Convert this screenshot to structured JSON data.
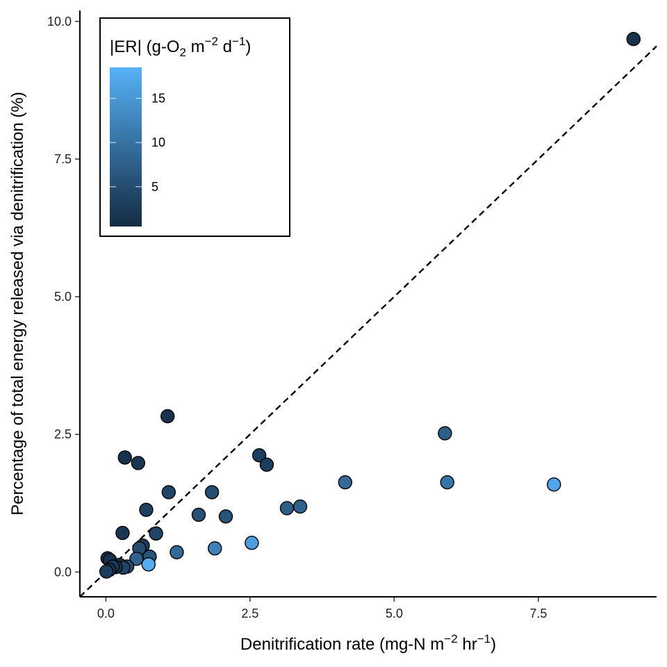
{
  "chart_data": {
    "type": "scatter",
    "title": "",
    "xlabel": {
      "main": "Denitrification rate (mg-N m",
      "sup1": "−2",
      "mid": " hr",
      "sup2": "−1",
      "end": ")"
    },
    "ylabel": "Percentage of total energy released via denitrification (%)",
    "xlim": [
      -0.45,
      9.55
    ],
    "ylim": [
      -0.45,
      10.2
    ],
    "xticks": [
      0.0,
      2.5,
      5.0,
      7.5
    ],
    "xtick_labels": [
      "0.0",
      "2.5",
      "5.0",
      "7.5"
    ],
    "yticks": [
      0.0,
      2.5,
      5.0,
      7.5,
      10.0
    ],
    "ytick_labels": [
      "0.0",
      "2.5",
      "5.0",
      "7.5",
      "10.0"
    ],
    "grid": false,
    "reference_line": {
      "type": "y=x",
      "style": "dashed",
      "color": "#000000"
    },
    "legend": {
      "title": {
        "pre": "|ER| (g-O",
        "sub": "2",
        "mid": " m",
        "sup1": "−2",
        "mid2": " d",
        "sup2": "−1",
        "end": ")"
      },
      "placement": "top-left",
      "range": [
        0.5,
        18.5
      ],
      "ticks": [
        5,
        10,
        15
      ],
      "tick_labels": [
        "5",
        "10",
        "15"
      ],
      "color_low": "#132b43",
      "color_high": "#56b1f7"
    },
    "points": [
      {
        "x": 9.15,
        "y": 9.68,
        "er": 1.5
      },
      {
        "x": 1.07,
        "y": 2.83,
        "er": 1.5
      },
      {
        "x": 0.33,
        "y": 2.08,
        "er": 1.5
      },
      {
        "x": 0.56,
        "y": 1.98,
        "er": 2.0
      },
      {
        "x": 2.66,
        "y": 2.12,
        "er": 3.0
      },
      {
        "x": 2.79,
        "y": 1.95,
        "er": 3.0
      },
      {
        "x": 5.88,
        "y": 2.52,
        "er": 7.5
      },
      {
        "x": 1.09,
        "y": 1.45,
        "er": 4.0
      },
      {
        "x": 1.84,
        "y": 1.45,
        "er": 5.0
      },
      {
        "x": 4.15,
        "y": 1.63,
        "er": 9.0
      },
      {
        "x": 5.92,
        "y": 1.63,
        "er": 10.5
      },
      {
        "x": 7.77,
        "y": 1.59,
        "er": 17.0
      },
      {
        "x": 0.7,
        "y": 1.13,
        "er": 3.5
      },
      {
        "x": 1.61,
        "y": 1.04,
        "er": 5.5
      },
      {
        "x": 2.08,
        "y": 1.01,
        "er": 6.0
      },
      {
        "x": 3.14,
        "y": 1.16,
        "er": 7.5
      },
      {
        "x": 3.37,
        "y": 1.19,
        "er": 8.0
      },
      {
        "x": 0.29,
        "y": 0.71,
        "er": 2.0
      },
      {
        "x": 0.87,
        "y": 0.7,
        "er": 4.0
      },
      {
        "x": 0.64,
        "y": 0.48,
        "er": 3.0
      },
      {
        "x": 0.58,
        "y": 0.43,
        "er": 5.0
      },
      {
        "x": 2.53,
        "y": 0.53,
        "er": 16.0
      },
      {
        "x": 1.89,
        "y": 0.43,
        "er": 12.0
      },
      {
        "x": 1.23,
        "y": 0.36,
        "er": 9.0
      },
      {
        "x": 0.76,
        "y": 0.28,
        "er": 6.0
      },
      {
        "x": 0.53,
        "y": 0.24,
        "er": 8.0
      },
      {
        "x": 0.03,
        "y": 0.25,
        "er": 1.5
      },
      {
        "x": 0.07,
        "y": 0.22,
        "er": 1.5
      },
      {
        "x": 0.24,
        "y": 0.13,
        "er": 3.0
      },
      {
        "x": 0.37,
        "y": 0.1,
        "er": 5.0
      },
      {
        "x": 0.3,
        "y": 0.08,
        "er": 4.0
      },
      {
        "x": 0.17,
        "y": 0.09,
        "er": 2.5
      },
      {
        "x": 0.12,
        "y": 0.1,
        "er": 2.5
      },
      {
        "x": 0.06,
        "y": 0.04,
        "er": 2.0
      },
      {
        "x": 0.01,
        "y": 0.01,
        "er": 3.0
      },
      {
        "x": 0.74,
        "y": 0.14,
        "er": 18.0
      }
    ]
  }
}
